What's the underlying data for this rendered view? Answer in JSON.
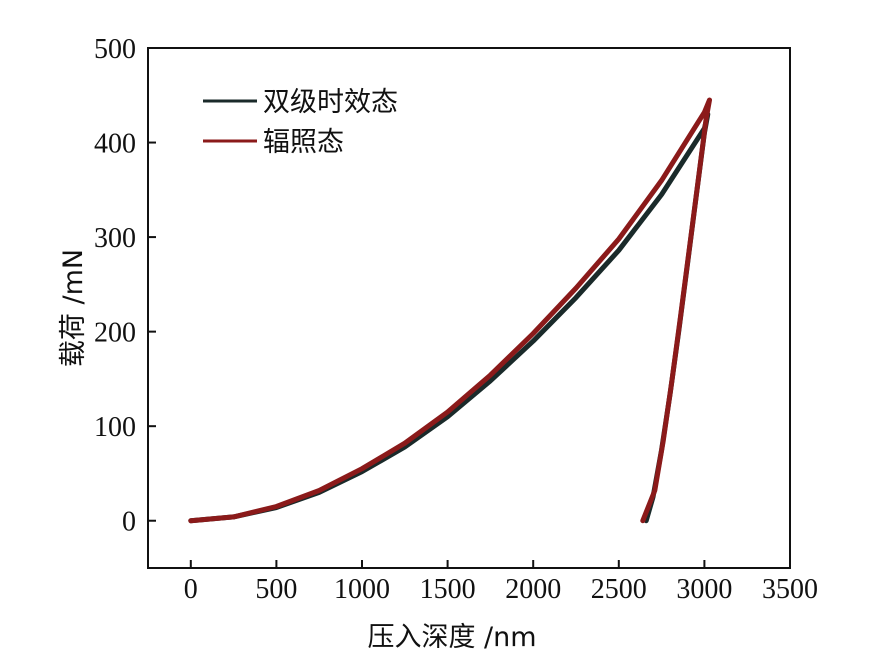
{
  "chart_data": {
    "type": "line",
    "xlabel": "压入深度 /nm",
    "ylabel": "载荷 /mN",
    "xlim": [
      -250,
      3500
    ],
    "ylim": [
      -50,
      500
    ],
    "xticks": [
      0,
      500,
      1000,
      1500,
      2000,
      2500,
      3000,
      3500
    ],
    "yticks": [
      0,
      100,
      200,
      300,
      400,
      500
    ],
    "xtick_labels": [
      "0",
      "500",
      "1000",
      "1500",
      "2000",
      "2500",
      "3000",
      "3500"
    ],
    "ytick_labels": [
      "0",
      "100",
      "200",
      "300",
      "400",
      "500"
    ],
    "grid": false,
    "legend_position": "top-left",
    "series": [
      {
        "name": "双级时效态",
        "color": "#1a2a2a",
        "x": [
          0,
          250,
          500,
          750,
          1000,
          1250,
          1500,
          1750,
          2000,
          2250,
          2500,
          2750,
          3000,
          3020,
          3000,
          2950,
          2900,
          2850,
          2800,
          2750,
          2700,
          2660
        ],
        "y": [
          0,
          4,
          14,
          30,
          52,
          78,
          110,
          148,
          190,
          236,
          286,
          345,
          415,
          430,
          410,
          340,
          270,
          200,
          135,
          75,
          25,
          0
        ]
      },
      {
        "name": "辐照态",
        "color": "#8b1a1a",
        "x": [
          0,
          250,
          500,
          750,
          1000,
          1250,
          1500,
          1750,
          2000,
          2250,
          2500,
          2750,
          3000,
          3030,
          3010,
          2960,
          2910,
          2860,
          2810,
          2760,
          2710,
          2640
        ],
        "y": [
          0,
          4,
          15,
          32,
          55,
          82,
          115,
          154,
          198,
          246,
          298,
          360,
          432,
          445,
          425,
          355,
          285,
          215,
          148,
          85,
          32,
          0
        ]
      }
    ]
  }
}
